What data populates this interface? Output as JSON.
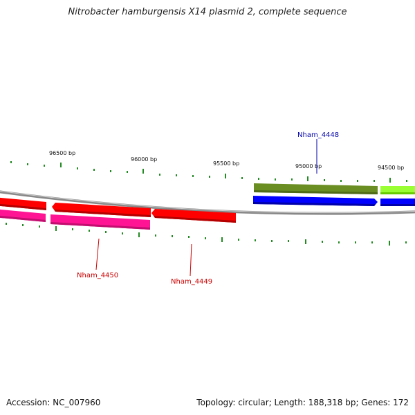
{
  "title": "Nitrobacter hamburgensis X14 plasmid 2, complete sequence",
  "footer": {
    "accession": "Accession: NC_007960",
    "summary": "Topology: circular; Length: 188,318 bp; Genes: 172"
  },
  "ticks": [
    "96500 bp",
    "96000 bp",
    "95500 bp",
    "95000 bp",
    "94500 bp"
  ],
  "genes": [
    {
      "name": "Nham_4448",
      "color": "#0000aa",
      "feature_color": "#6b8e23"
    },
    {
      "name": "Nham_4449",
      "color": "#cc0000",
      "feature_color": "#ff0000"
    },
    {
      "name": "Nham_4450",
      "color": "#cc0000",
      "feature_color": "#ff1493"
    }
  ],
  "colors": {
    "backbone": "#888888",
    "cds_forward": "#0000ff",
    "cds_reverse": "#ff0000",
    "gene_olive": "#6b8e23",
    "gene_lime": "#99ff33",
    "gene_pink": "#ff1493",
    "tick": "#228b22"
  }
}
